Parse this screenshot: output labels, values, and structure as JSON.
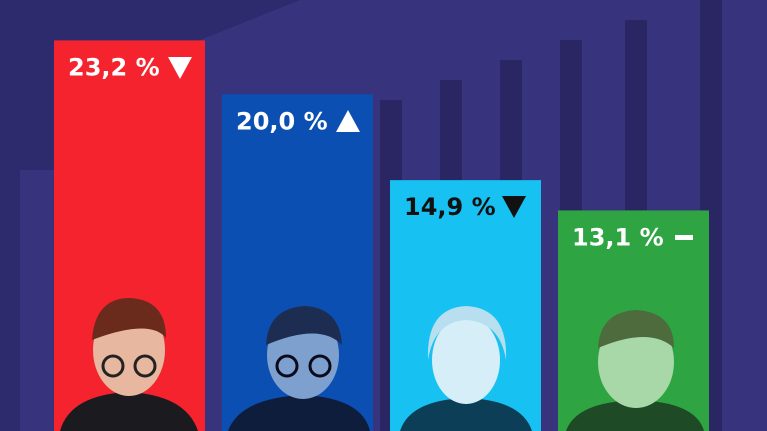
{
  "chart_data": {
    "type": "bar",
    "values": [
      23.2,
      20.0,
      14.9,
      13.1
    ],
    "value_labels": [
      "23,2 %",
      "20,0 %",
      "14,9 %",
      "13,1 %"
    ],
    "colors": [
      "#f4232e",
      "#0b4fb3",
      "#17c2f2",
      "#2ea443"
    ],
    "label_colors": [
      "#ffffff",
      "#ffffff",
      "#111111",
      "#ffffff"
    ],
    "ylim": [
      0,
      25.6
    ]
  }
}
